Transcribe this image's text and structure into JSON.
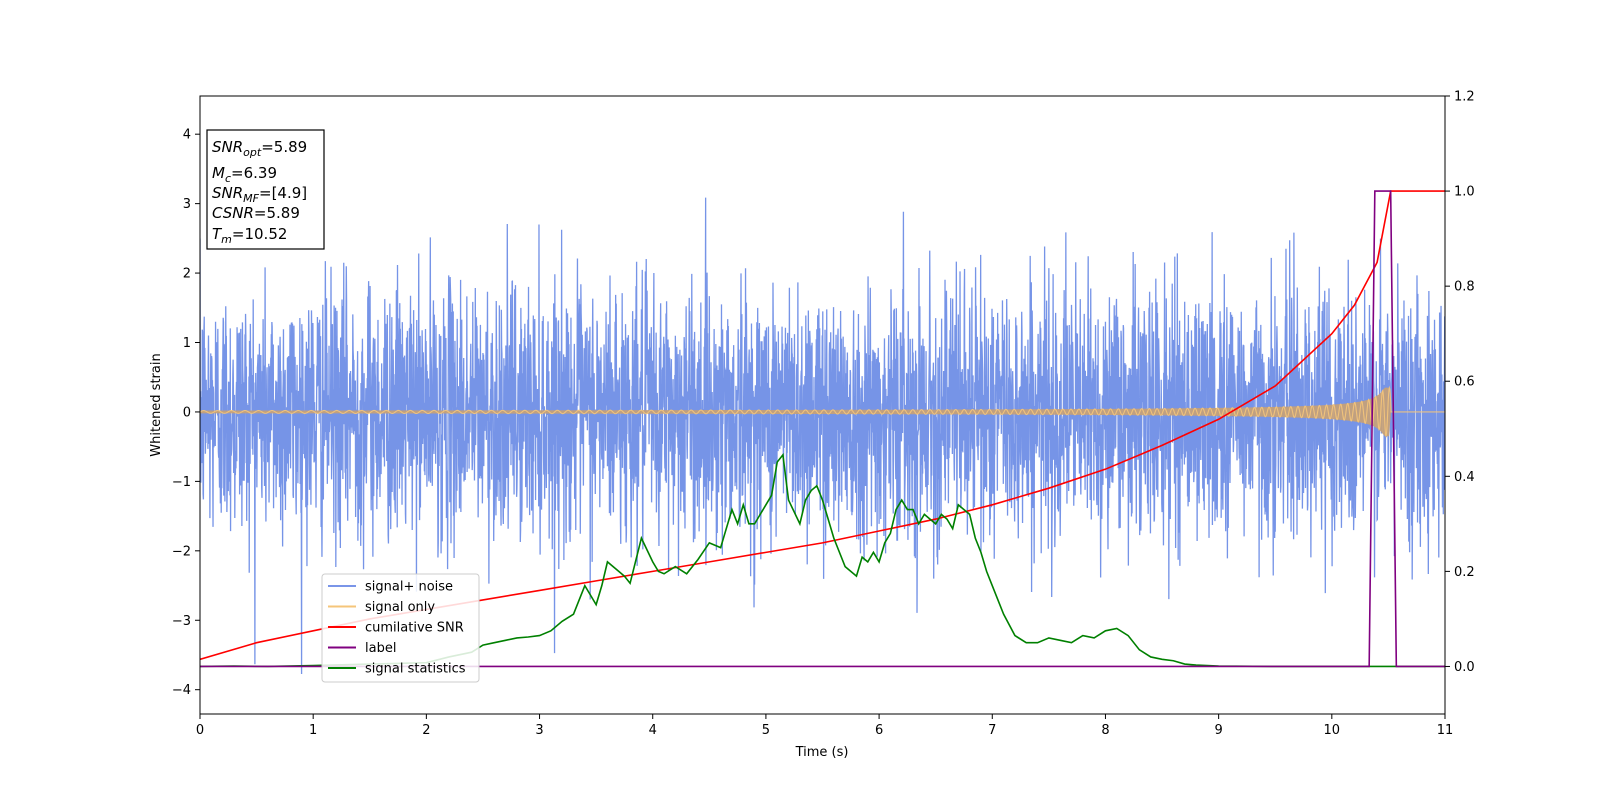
{
  "chart_data": {
    "type": "line",
    "title": "",
    "xlabel": "Time (s)",
    "ylabel": "Whitened strain",
    "xlim": [
      0,
      11
    ],
    "ylim": [
      -4.35,
      4.55
    ],
    "y2lim": [
      -0.1,
      1.2
    ],
    "xticks": [
      0,
      1,
      2,
      3,
      4,
      5,
      6,
      7,
      8,
      9,
      10,
      11
    ],
    "yticks": [
      -4,
      -3,
      -2,
      -1,
      0,
      1,
      2,
      3,
      4
    ],
    "y2ticks": [
      0.0,
      0.2,
      0.4,
      0.6,
      0.8,
      1.0,
      1.2
    ],
    "grid": false,
    "legend_position": "lower-left",
    "annotation": {
      "lines": [
        {
          "base": "SNR",
          "sub": "opt",
          "rest": "=5.89"
        },
        {
          "base": "M",
          "sub": "c",
          "rest": "=6.39"
        },
        {
          "base": "SNR",
          "sub": "MF",
          "rest": "=[4.9]"
        },
        {
          "base": "CSNR",
          "sub": "",
          "rest": "=5.89"
        },
        {
          "base": "T",
          "sub": "m",
          "rest": "=10.52"
        }
      ]
    },
    "series": [
      {
        "name": "signal+ noise",
        "color": "#6f8ee6",
        "axis": "left",
        "kind": "noise",
        "noise_sigma": 0.9,
        "noise_range": [
          -3.95,
          4.2
        ]
      },
      {
        "name": "signal only",
        "color": "#f5c57a",
        "axis": "left",
        "kind": "chirp",
        "merger_time": 10.52,
        "peak_amplitude": 0.35,
        "start_amplitude": 0.02
      },
      {
        "name": "cumilative SNR",
        "color": "#ff0000",
        "axis": "right",
        "x": [
          0,
          0.5,
          1,
          1.5,
          2,
          2.5,
          3,
          3.5,
          4,
          4.5,
          5,
          5.5,
          6,
          6.5,
          7,
          7.5,
          8,
          8.5,
          9,
          9.5,
          10,
          10.2,
          10.4,
          10.52,
          11
        ],
        "y": [
          0.015,
          0.05,
          0.075,
          0.1,
          0.12,
          0.14,
          0.16,
          0.18,
          0.2,
          0.22,
          0.24,
          0.26,
          0.285,
          0.31,
          0.34,
          0.375,
          0.415,
          0.465,
          0.52,
          0.59,
          0.7,
          0.76,
          0.85,
          1.0,
          1.0
        ]
      },
      {
        "name": "label",
        "color": "#800080",
        "axis": "right",
        "x": [
          0,
          10.33,
          10.38,
          10.52,
          10.57,
          11
        ],
        "y": [
          0.0,
          0.0,
          1.0,
          1.0,
          0.0,
          0.0
        ]
      },
      {
        "name": "signal statistics",
        "color": "#008000",
        "axis": "right",
        "x": [
          0,
          0.3,
          0.6,
          1,
          1.5,
          2,
          2.2,
          2.4,
          2.5,
          2.6,
          2.7,
          2.8,
          2.9,
          3.0,
          3.1,
          3.2,
          3.3,
          3.4,
          3.5,
          3.55,
          3.6,
          3.7,
          3.75,
          3.8,
          3.9,
          4.0,
          4.05,
          4.1,
          4.2,
          4.3,
          4.4,
          4.5,
          4.6,
          4.7,
          4.75,
          4.8,
          4.85,
          4.9,
          5.0,
          5.05,
          5.1,
          5.15,
          5.2,
          5.3,
          5.35,
          5.4,
          5.45,
          5.5,
          5.55,
          5.6,
          5.7,
          5.8,
          5.85,
          5.9,
          5.95,
          6.0,
          6.05,
          6.1,
          6.15,
          6.2,
          6.25,
          6.3,
          6.35,
          6.4,
          6.45,
          6.5,
          6.55,
          6.6,
          6.65,
          6.7,
          6.75,
          6.8,
          6.85,
          6.9,
          6.95,
          7.0,
          7.1,
          7.2,
          7.3,
          7.4,
          7.5,
          7.6,
          7.7,
          7.8,
          7.9,
          8.0,
          8.1,
          8.2,
          8.3,
          8.4,
          8.5,
          8.6,
          8.7,
          8.8,
          9.0,
          9.5,
          10.0,
          10.33,
          11
        ],
        "y": [
          0.0,
          0.001,
          0.0,
          0.002,
          0.005,
          0.008,
          0.02,
          0.03,
          0.045,
          0.05,
          0.055,
          0.06,
          0.062,
          0.065,
          0.075,
          0.095,
          0.11,
          0.17,
          0.13,
          0.17,
          0.22,
          0.2,
          0.19,
          0.175,
          0.27,
          0.22,
          0.2,
          0.195,
          0.21,
          0.195,
          0.225,
          0.26,
          0.25,
          0.33,
          0.3,
          0.34,
          0.3,
          0.3,
          0.34,
          0.36,
          0.43,
          0.445,
          0.35,
          0.3,
          0.35,
          0.37,
          0.38,
          0.35,
          0.31,
          0.27,
          0.21,
          0.19,
          0.23,
          0.22,
          0.24,
          0.22,
          0.26,
          0.28,
          0.33,
          0.35,
          0.33,
          0.33,
          0.3,
          0.32,
          0.31,
          0.3,
          0.32,
          0.31,
          0.29,
          0.34,
          0.33,
          0.32,
          0.27,
          0.24,
          0.2,
          0.17,
          0.11,
          0.065,
          0.05,
          0.05,
          0.06,
          0.055,
          0.05,
          0.065,
          0.06,
          0.075,
          0.08,
          0.065,
          0.035,
          0.02,
          0.015,
          0.012,
          0.005,
          0.003,
          0.001,
          0.0,
          0.0,
          0.0,
          0.0
        ]
      }
    ]
  }
}
